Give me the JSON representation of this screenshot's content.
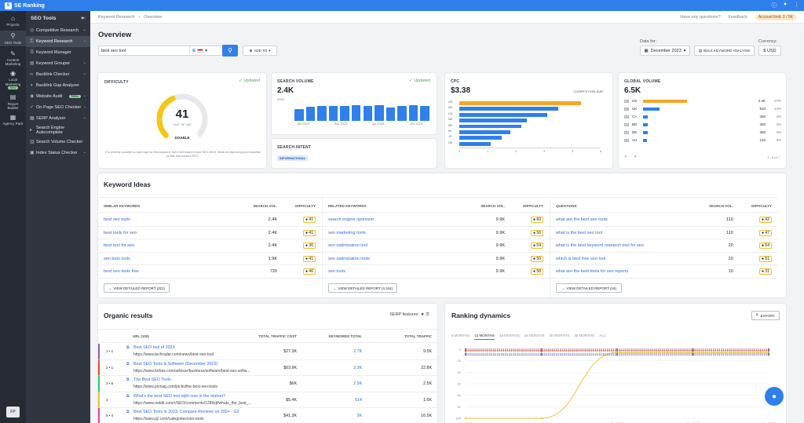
{
  "app": {
    "name": "SE Ranking"
  },
  "topbar": {
    "icons": [
      "help-icon",
      "bell-icon",
      "user-menu-icon"
    ]
  },
  "rail": {
    "items": [
      {
        "label": "Projects",
        "icon": "home-icon"
      },
      {
        "label": "SEO Tools",
        "icon": "search-icon",
        "active": true
      },
      {
        "label": "Content Marketing",
        "icon": "edit-icon"
      },
      {
        "label": "Local Marketing",
        "icon": "pin-icon",
        "badge": "New"
      },
      {
        "label": "Report Builder",
        "icon": "report-icon"
      },
      {
        "label": "Agency Pack",
        "icon": "building-icon"
      }
    ],
    "avatar": "FP"
  },
  "sidebar": {
    "title": "SEO Tools",
    "items": [
      {
        "label": "Competitive Research",
        "icon": "target-icon",
        "chevron": true
      },
      {
        "label": "Keyword Research",
        "icon": "key-icon",
        "chevron": true,
        "active": true
      },
      {
        "label": "Keyword Manager",
        "icon": "list-icon"
      },
      {
        "label": "Keyword Grouper",
        "icon": "folder-icon",
        "chevron": true
      },
      {
        "label": "Backlink Checker",
        "icon": "link-icon",
        "chevron": true
      },
      {
        "label": "Backlink Gap Analyzer",
        "icon": "gap-icon"
      },
      {
        "label": "Website Audit",
        "icon": "audit-icon",
        "badge": "New",
        "chevron": true
      },
      {
        "label": "On-Page SEO Checker",
        "icon": "check-icon",
        "chevron": true
      },
      {
        "label": "SERP Analyzer",
        "icon": "serp-icon",
        "chevron": true
      },
      {
        "label": "Search Engine Autocomplete",
        "icon": "autocomplete-icon"
      },
      {
        "label": "Search Volume Checker",
        "icon": "volume-icon"
      },
      {
        "label": "Index Status Checker",
        "icon": "index-icon",
        "chevron": true
      }
    ]
  },
  "breadcrumb": {
    "parent": "Keyword Research",
    "current": "Overview",
    "help": "Have any questions?",
    "feedback": "Feedback",
    "limit": "Account limit: 2 / 5K"
  },
  "overview": {
    "title": "Overview",
    "search_value": "best seo tool",
    "engine": "G",
    "add_to": "ADD TO",
    "data_for_label": "Data for:",
    "date": "December 2023",
    "bulk": "BULK KEYWORD ANALYSIS",
    "currency_label": "Currency:",
    "currency": "$ USD"
  },
  "difficulty": {
    "title": "DIFFICULTY",
    "updated": "Updated",
    "value": "41",
    "out_of": "OUT OF 100",
    "level": "DOABLE",
    "note": "It is entirely possible to rank high for this keyword, but it will require more SEO effort. Work on improving your backlink profile and content SEO.",
    "score_fraction": 0.41
  },
  "volume": {
    "title": "SEARCH VOLUME",
    "updated": "Updated",
    "value": "2.4K",
    "ytick": "3200",
    "xlabels": [
      "Jan 2023",
      "Apr 2023",
      "Jul 2023",
      "Oct 2023"
    ],
    "bars": [
      1900,
      2250,
      2400,
      2400,
      2300,
      2500,
      2400,
      2500,
      2150,
      2400,
      2500,
      2400
    ],
    "intent_title": "SEARCH INTENT",
    "intent": "INFORMATIONAL"
  },
  "cpc": {
    "title": "CPC",
    "value": "$3.38",
    "competition_label": "COMPETITION:",
    "competition": "0.27",
    "countries": [
      "US",
      "AU",
      "CA",
      "NZ",
      "SE",
      "IN",
      "JP",
      "UK"
    ],
    "values": [
      4.3,
      3.5,
      3.1,
      2.4,
      2.2,
      1.8,
      1.5,
      1.1
    ],
    "xticks": [
      "0",
      "1",
      "2",
      "3",
      "4",
      "5"
    ]
  },
  "global": {
    "title": "GLOBAL VOLUME",
    "value": "6.5K",
    "rows": [
      {
        "flag": "flag-us-icon",
        "code": "US",
        "value": "2.4K",
        "pct": "37%",
        "frac": 0.37,
        "color": "#f5a623"
      },
      {
        "flag": "flag-uk-icon",
        "code": "UK",
        "value": "910",
        "pct": "14%",
        "frac": 0.14,
        "color": "#2f80ed"
      },
      {
        "flag": "flag-ca-icon",
        "code": "CA",
        "value": "260",
        "pct": "4%",
        "frac": 0.04,
        "color": "#2f80ed"
      },
      {
        "flag": "flag-bd-icon",
        "code": "BD",
        "value": "260",
        "pct": "4%",
        "frac": 0.04,
        "color": "#2f80ed"
      },
      {
        "flag": "flag-de-icon",
        "code": "DE",
        "value": "260",
        "pct": "4%",
        "frac": 0.04,
        "color": "#2f80ed"
      },
      {
        "flag": "flag-au-icon",
        "code": "AU",
        "value": "210",
        "pct": "3%",
        "frac": 0.03,
        "color": "#2f80ed"
      }
    ],
    "pager": "1 - 5 of 7"
  },
  "keyword_ideas": {
    "title": "Keyword Ideas",
    "groups": [
      {
        "header": "SIMILAR KEYWORDS",
        "vol_h": "SEARCH VOL.",
        "kd_h": "DIFFICULTY",
        "rows": [
          [
            "best seo tools",
            "2.4K",
            "41"
          ],
          [
            "best tools for seo",
            "2.4K",
            "41"
          ],
          [
            "best tool for seo",
            "2.4K",
            "36"
          ],
          [
            "seo best tools",
            "1.9K",
            "41"
          ],
          [
            "best seo tools free",
            "720",
            "46"
          ]
        ],
        "btn": "VIEW DETAILED REPORT (321)"
      },
      {
        "header": "RELATED KEYWORDS",
        "vol_h": "SEARCH VOL.",
        "kd_h": "DIFFICULTY",
        "rows": [
          [
            "search engine optimizer",
            "9.9K",
            "60"
          ],
          [
            "seo marketing tools",
            "9.9K",
            "50"
          ],
          [
            "seo optimization tool",
            "9.9K",
            "54"
          ],
          [
            "seo optimization tools",
            "9.9K",
            "50"
          ],
          [
            "seo tools",
            "9.9K",
            "58"
          ]
        ],
        "btn": "VIEW DETAILED REPORT (4,344)"
      },
      {
        "header": "QUESTIONS",
        "vol_h": "SEARCH VOL.",
        "kd_h": "DIFFICULTY",
        "rows": [
          [
            "what are the best seo tools",
            "110",
            "42"
          ],
          [
            "what is the best seo tool",
            "110",
            "47"
          ],
          [
            "what is the best keyword research tool for seo",
            "20",
            "54"
          ],
          [
            "which is best free seo tool",
            "20",
            "51"
          ],
          [
            "what are the best tools for seo reports",
            "10",
            "31"
          ]
        ],
        "btn": "VIEW DETAILED REPORT (16)"
      }
    ]
  },
  "organic": {
    "title": "Organic results",
    "serp_label": "SERP features:",
    "headers": [
      "URL (100)",
      "TOTAL TRAFFIC COST",
      "KEYWORDS TOTAL",
      "TOTAL TRAFFIC"
    ],
    "rows": [
      {
        "pos": "1 • 1",
        "title": "Best SEO tool of 2023",
        "url": "https://www.techradar.com/news/best-seo-tool",
        "cost": "$27.3K",
        "kw": "2.7K",
        "traffic": "9.5K",
        "color": "#9b59b6"
      },
      {
        "pos": "2 • 1",
        "title": "Best SEO Tools & Software (December 2023)",
        "url": "https://www.forbes.com/advisor/business/software/best-seo-softw...",
        "cost": "$63.9K",
        "kw": "2.3K",
        "traffic": "22.8K",
        "color": "#e74c3c"
      },
      {
        "pos": "3 • 6",
        "title": "The Best SEO Tools",
        "url": "https://www.pcmag.com/picks/the-best-seo-tools",
        "cost": "$6K",
        "kw": "2.5K",
        "traffic": "2.5K",
        "color": "#2ecc71"
      },
      {
        "pos": "4",
        "title": "What's the best SEO tool right now in the market?",
        "url": "https://www.reddit.com/r/SEO/comments/1289zjf/whats_the_best_...",
        "cost": "$5.4K",
        "kw": "514",
        "traffic": "1.6K",
        "color": "#f1c232"
      },
      {
        "pos": "5 • 4",
        "title": "Best SEO Tools in 2023: Compare Reviews on 390+ - G2",
        "url": "https://www.g2.com/categories/seo-tools",
        "cost": "$41.3K",
        "kw": "3K",
        "traffic": "16.5K",
        "color": "#e84393"
      }
    ]
  },
  "ranking": {
    "title": "Ranking dynamics",
    "export": "EXPORT",
    "tabs": [
      "6 MONTHS",
      "12 MONTHS",
      "18 MONTHS",
      "24 MONTHS",
      "30 MONTHS",
      "36 MONTHS",
      "ALL"
    ],
    "active_tab": 1
  },
  "chart_data": {
    "type": "line",
    "x": [
      "Aug 2023",
      "Sep 2023",
      "Oct 2023",
      "Nov 2023",
      "Dec 2023"
    ],
    "y_ticks": [
      "1",
      "11",
      "21",
      "31",
      "41",
      "51",
      "100"
    ],
    "y_reversed": true,
    "series": [
      {
        "values": [
          1,
          1,
          1,
          1,
          1
        ],
        "color": "#9b59b6"
      },
      {
        "values": [
          2,
          2,
          2,
          2,
          2
        ],
        "color": "#e74c3c"
      },
      {
        "values": [
          3,
          3,
          3,
          3,
          3
        ],
        "color": "#2ecc71"
      },
      {
        "values": [
          100,
          100,
          4,
          4,
          4
        ],
        "color": "#f1c232"
      },
      {
        "values": [
          5,
          5,
          5,
          5,
          5
        ],
        "color": "#e84393"
      },
      {
        "values": [
          6,
          6,
          6,
          6,
          6
        ],
        "color": "#3498db"
      }
    ]
  },
  "chat": {
    "icon": "chat-icon"
  }
}
